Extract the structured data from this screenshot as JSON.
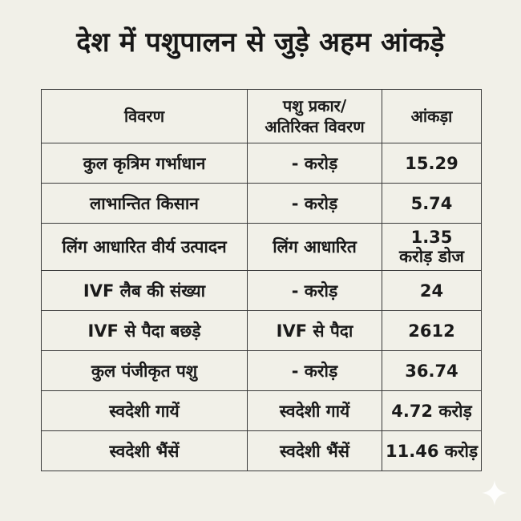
{
  "title": "देश में पशुपालन से जुड़े अहम आंकड़े",
  "table": {
    "headers": {
      "col1": "विवरण",
      "col2_line1": "पशु प्रकार/",
      "col2_line2": "अतिरिक्त विवरण",
      "col3": "आंकड़ा"
    },
    "rows": [
      {
        "label": "कुल कृत्रिम गर्भाधान",
        "type": "- करोड़",
        "value": "15.29"
      },
      {
        "label": "लाभान्तित किसान",
        "type": "- करोड़",
        "value": "5.74"
      },
      {
        "label": "लिंग आधारित वीर्य उत्पादन",
        "type": "लिंग आधारित",
        "value_line1": "1.35",
        "value_line2": "करोड़ डोज"
      },
      {
        "label": "IVF लैब की संख्या",
        "type": "- करोड़",
        "value": "24"
      },
      {
        "label": "IVF से पैदा बछड़े",
        "type": "IVF से पैदा",
        "value": "2612"
      },
      {
        "label": "कुल पंजीकृत पशु",
        "type": "- करोड़",
        "value": "36.74"
      },
      {
        "label": "स्वदेशी गायें",
        "type": "स्वदेशी गायें",
        "value": "4.72 करोड़"
      },
      {
        "label": "स्वदेशी भैंसें",
        "type": "स्वदेशी भैंसें",
        "value": "11.46 करोड़"
      }
    ]
  },
  "icons": {
    "corner": "sparkle-icon"
  },
  "colors": {
    "background": "#f1f0e8",
    "text": "#1a1a1a",
    "border": "#3a3a3a",
    "sparkle": "#ffffff"
  }
}
